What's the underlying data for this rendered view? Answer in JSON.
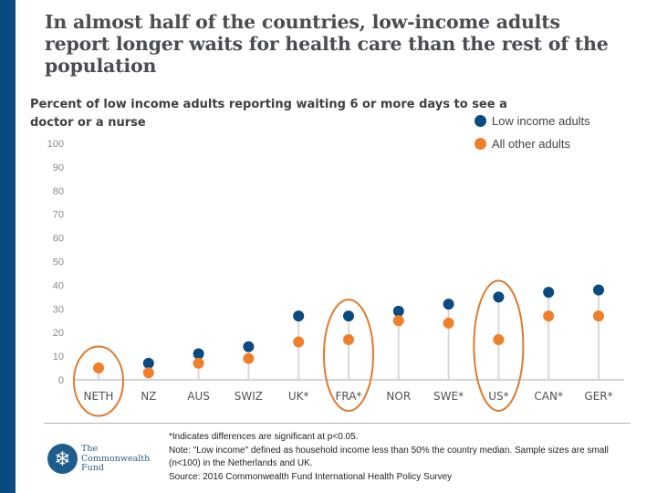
{
  "title": "In almost half of the countries, low-income adults report longer waits for health care than the rest of the population",
  "subtitle": "Percent of low income adults reporting waiting 6 or more days to see a doctor or a nurse",
  "legend": [
    {
      "label": "Low income adults",
      "color": "#0b4a80"
    },
    {
      "label": "All other adults",
      "color": "#f07f2a"
    }
  ],
  "colors": {
    "accent_bar": "#084b80",
    "low_income": "#0b4a80",
    "other": "#f07f2a",
    "highlight": "#e07a2e",
    "stem": "#d9d9dc",
    "axis_text": "#8a8a8a"
  },
  "logo": {
    "icon": "snowflake-icon",
    "glyph": "❄",
    "line1": "The",
    "line2": "Commonwealth",
    "line3": "Fund"
  },
  "notes": {
    "significance": "*Indicates differences are significant at p<0.05.",
    "note": "Note: \"Low income\" defined as household income less than 50% the country median. Sample sizes are small (n<100) in the Netherlands and UK.",
    "source": "Source: 2016 Commonwealth Fund International Health Policy Survey"
  },
  "chart_data": {
    "type": "scatter",
    "subtype": "dot-plot",
    "title": "Percent of low income adults reporting waiting 6 or more days to see a doctor or a nurse",
    "xlabel": "",
    "ylabel": "",
    "ylim": [
      0,
      100
    ],
    "yticks": [
      0,
      10,
      20,
      30,
      40,
      50,
      60,
      70,
      80,
      90,
      100
    ],
    "grid": false,
    "legend_position": "top-right",
    "categories": [
      "NETH",
      "NZ",
      "AUS",
      "SWIZ",
      "UK*",
      "FRA*",
      "NOR",
      "SWE*",
      "US*",
      "CAN*",
      "GER*"
    ],
    "series": [
      {
        "name": "Low income adults",
        "values": [
          null,
          7,
          11,
          14,
          27,
          27,
          29,
          32,
          35,
          37,
          38
        ]
      },
      {
        "name": "All other adults",
        "values": [
          5,
          3,
          7,
          9,
          16,
          17,
          25,
          24,
          17,
          27,
          27
        ]
      }
    ],
    "highlighted": [
      "NETH",
      "FRA*",
      "US*"
    ]
  }
}
